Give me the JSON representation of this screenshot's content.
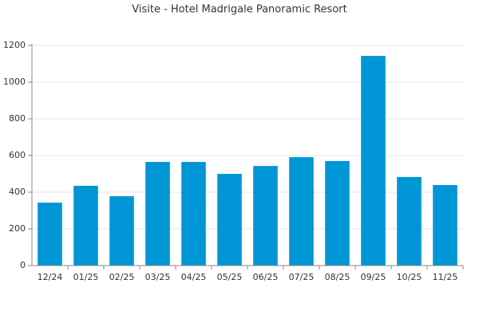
{
  "chart_data": {
    "type": "bar",
    "title": "Visite - Hotel Madrigale Panoramic Resort",
    "categories": [
      "12/24",
      "01/25",
      "02/25",
      "03/25",
      "04/25",
      "05/25",
      "06/25",
      "07/25",
      "08/25",
      "09/25",
      "10/25",
      "11/25"
    ],
    "values": [
      343,
      435,
      378,
      565,
      565,
      500,
      543,
      591,
      570,
      1143,
      483,
      439
    ],
    "color": "#0096d6",
    "ylim": [
      0,
      1200
    ],
    "yticks": [
      0,
      200,
      400,
      600,
      800,
      1000,
      1200
    ],
    "grid": true
  }
}
